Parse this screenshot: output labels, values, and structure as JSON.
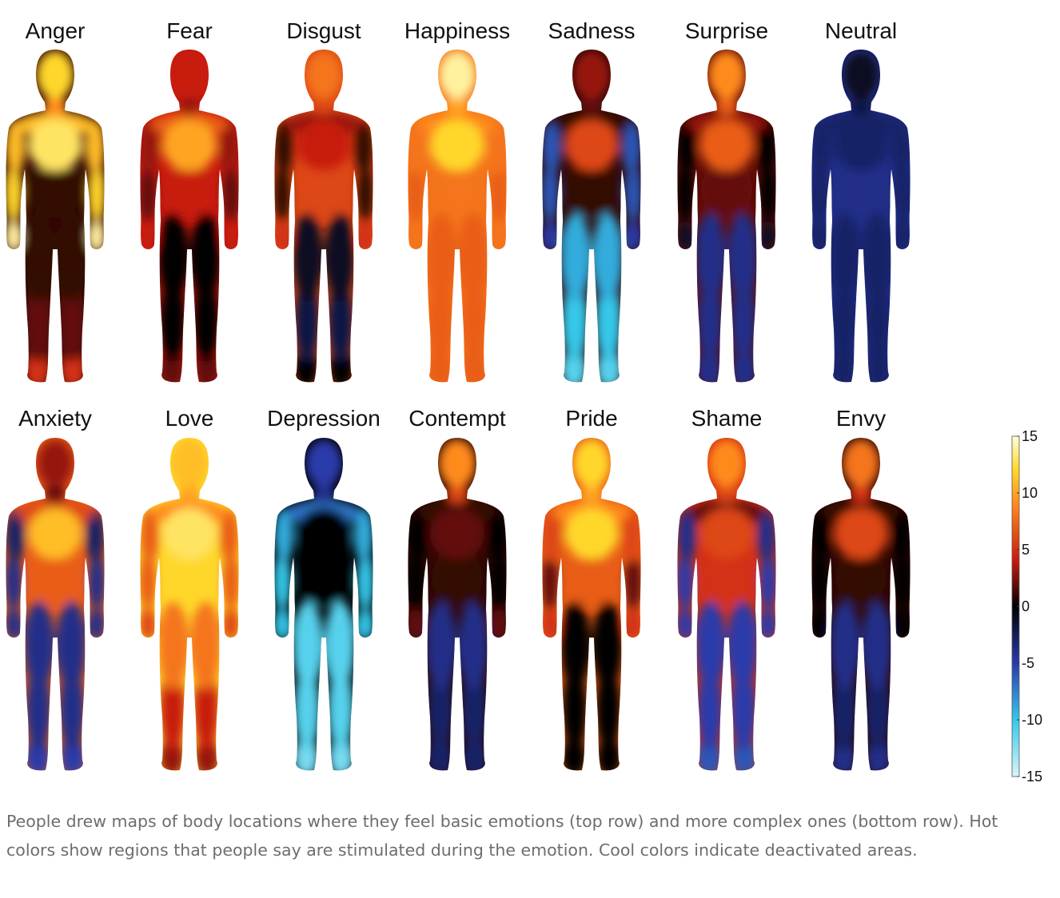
{
  "chart_data": {
    "type": "heatmap",
    "rows": [
      {
        "name": "top row",
        "figures": [
          {
            "label": "Anger",
            "head": 12,
            "neck": 9,
            "chest": 13,
            "shoulders": 11,
            "abdomen": 1,
            "upper_arm": 11,
            "forearm": 12,
            "hand": 14,
            "upper_leg": 1,
            "lower_leg": 2,
            "feet": 5
          },
          {
            "label": "Fear",
            "head": 4,
            "neck": 3,
            "chest": 10,
            "shoulders": 7,
            "abdomen": 4,
            "upper_arm": 3,
            "forearm": 2,
            "hand": 4,
            "upper_leg": 0,
            "lower_leg": 0,
            "feet": 2
          },
          {
            "label": "Disgust",
            "head": 8,
            "neck": 6,
            "chest": 4,
            "shoulders": 3,
            "abdomen": 6,
            "upper_arm": 1,
            "forearm": 1,
            "hand": 5,
            "upper_leg": -1,
            "lower_leg": -2,
            "feet": 0
          },
          {
            "label": "Happiness",
            "head": 14,
            "neck": 10,
            "chest": 12,
            "shoulders": 9,
            "abdomen": 8,
            "upper_arm": 8,
            "forearm": 7,
            "hand": 8,
            "upper_leg": 7,
            "lower_leg": 7,
            "feet": 7
          },
          {
            "label": "Sadness",
            "head": 3,
            "neck": 2,
            "chest": 6,
            "shoulders": 1,
            "abdomen": 1,
            "upper_arm": -6,
            "forearm": -6,
            "hand": -5,
            "upper_leg": -9,
            "lower_leg": -10,
            "feet": -11
          },
          {
            "label": "Surprise",
            "head": 9,
            "neck": 7,
            "chest": 7,
            "shoulders": 3,
            "abdomen": 2,
            "upper_arm": 0,
            "forearm": 0,
            "hand": -1,
            "upper_leg": -4,
            "lower_leg": -4,
            "feet": -4
          },
          {
            "label": "Neutral",
            "head": -1,
            "neck": -2,
            "chest": -3,
            "shoulders": -3,
            "abdomen": -4,
            "upper_arm": -3,
            "forearm": -3,
            "hand": -3,
            "upper_leg": -3,
            "lower_leg": -3,
            "feet": -3
          }
        ]
      },
      {
        "name": "bottom row",
        "figures": [
          {
            "label": "Anxiety",
            "head": 3,
            "neck": 2,
            "chest": 11,
            "shoulders": 6,
            "abdomen": 7,
            "upper_arm": -3,
            "forearm": -4,
            "hand": -4,
            "upper_leg": -4,
            "lower_leg": -4,
            "feet": -5
          },
          {
            "label": "Love",
            "head": 11,
            "neck": 10,
            "chest": 13,
            "shoulders": 9,
            "abdomen": 12,
            "upper_arm": 7,
            "forearm": 7,
            "hand": 6,
            "upper_leg": 8,
            "lower_leg": 4,
            "feet": 3
          },
          {
            "label": "Depression",
            "head": -5,
            "neck": -4,
            "chest": 0,
            "shoulders": -7,
            "abdomen": 0,
            "upper_arm": -9,
            "forearm": -10,
            "hand": -10,
            "upper_leg": -11,
            "lower_leg": -11,
            "feet": -12
          },
          {
            "label": "Contempt",
            "head": 9,
            "neck": 6,
            "chest": 2,
            "shoulders": 1,
            "abdomen": 1,
            "upper_arm": 0,
            "forearm": 0,
            "hand": 2,
            "upper_leg": -4,
            "lower_leg": -3,
            "feet": -3
          },
          {
            "label": "Pride",
            "head": 12,
            "neck": 10,
            "chest": 12,
            "shoulders": 9,
            "abdomen": 7,
            "upper_arm": 6,
            "forearm": 2,
            "hand": 5,
            "upper_leg": 0,
            "lower_leg": 0,
            "feet": 0
          },
          {
            "label": "Shame",
            "head": 9,
            "neck": 6,
            "chest": 6,
            "shoulders": 2,
            "abdomen": 5,
            "upper_arm": -4,
            "forearm": -5,
            "hand": -5,
            "upper_leg": -5,
            "lower_leg": -5,
            "feet": -6
          },
          {
            "label": "Envy",
            "head": 8,
            "neck": 5,
            "chest": 6,
            "shoulders": 1,
            "abdomen": 1,
            "upper_arm": 0,
            "forearm": 0,
            "hand": 0,
            "upper_leg": -4,
            "lower_leg": -3,
            "feet": -4
          }
        ]
      }
    ],
    "colorbar": {
      "range": [
        -15,
        15
      ],
      "ticks": [
        15,
        10,
        5,
        0,
        -5,
        -10,
        -15
      ],
      "stops": [
        {
          "v": -15,
          "color": "#d9f4fb"
        },
        {
          "v": -10,
          "color": "#35c8ea"
        },
        {
          "v": -5,
          "color": "#2a3aaa"
        },
        {
          "v": 0,
          "color": "#000000"
        },
        {
          "v": 4,
          "color": "#c81a10"
        },
        {
          "v": 9,
          "color": "#ff8a1c"
        },
        {
          "v": 12,
          "color": "#ffd72a"
        },
        {
          "v": 15,
          "color": "#ffffd9"
        }
      ]
    }
  },
  "caption": "People drew maps of body locations where they feel basic emotions (top row) and more complex ones (bottom row). Hot colors show regions that people say are stimulated during the emotion. Cool colors indicate deactivated areas."
}
